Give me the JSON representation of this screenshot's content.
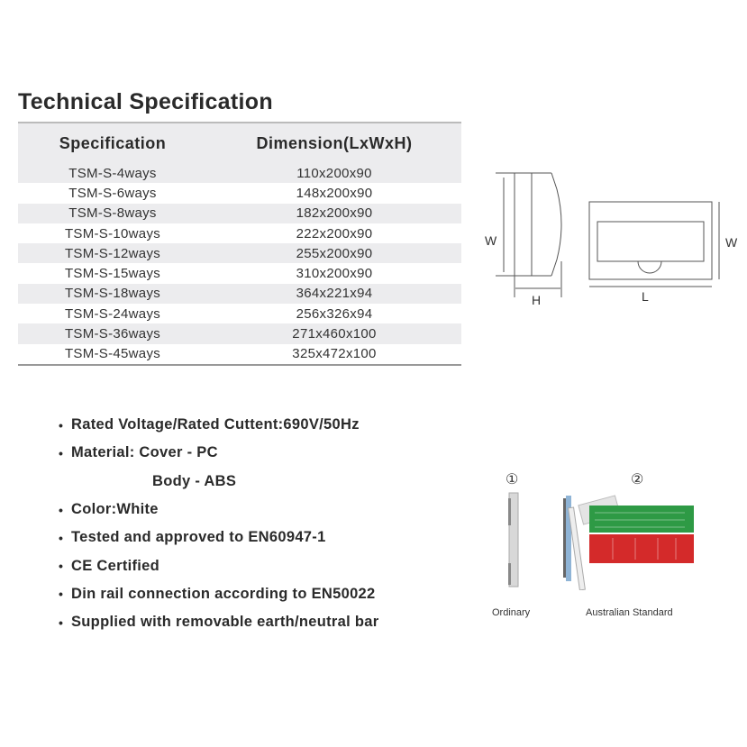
{
  "title": "Technical Specification",
  "table": {
    "headers": [
      "Specification",
      "Dimension(LxWxH)"
    ],
    "rows": [
      [
        "TSM-S-4ways",
        "110x200x90"
      ],
      [
        "TSM-S-6ways",
        "148x200x90"
      ],
      [
        "TSM-S-8ways",
        "182x200x90"
      ],
      [
        "TSM-S-10ways",
        "222x200x90"
      ],
      [
        "TSM-S-12ways",
        "255x200x90"
      ],
      [
        "TSM-S-15ways",
        "310x200x90"
      ],
      [
        "TSM-S-18ways",
        "364x221x94"
      ],
      [
        "TSM-S-24ways",
        "256x326x94"
      ],
      [
        "TSM-S-36ways",
        "271x460x100"
      ],
      [
        "TSM-S-45ways",
        "325x472x100"
      ]
    ]
  },
  "diagram": {
    "side_w": "W",
    "side_h": "H",
    "front_w": "W",
    "front_l": "L"
  },
  "features": [
    "Rated Voltage/Rated Cuttent:690V/50Hz",
    "Material:  Cover - PC",
    "Body - ABS",
    "Color:White",
    "Tested and approved to EN60947-1",
    "CE Certified",
    "Din rail connection according to EN50022",
    "Supplied with removable earth/neutral bar"
  ],
  "bars": {
    "option1_number": "①",
    "option1_label": "Ordinary",
    "option2_number": "②",
    "option2_label": "Australian Standard"
  },
  "colors": {
    "row_shade": "#ececee",
    "green_label": "#2e9a45",
    "red_label": "#d42a2a"
  }
}
